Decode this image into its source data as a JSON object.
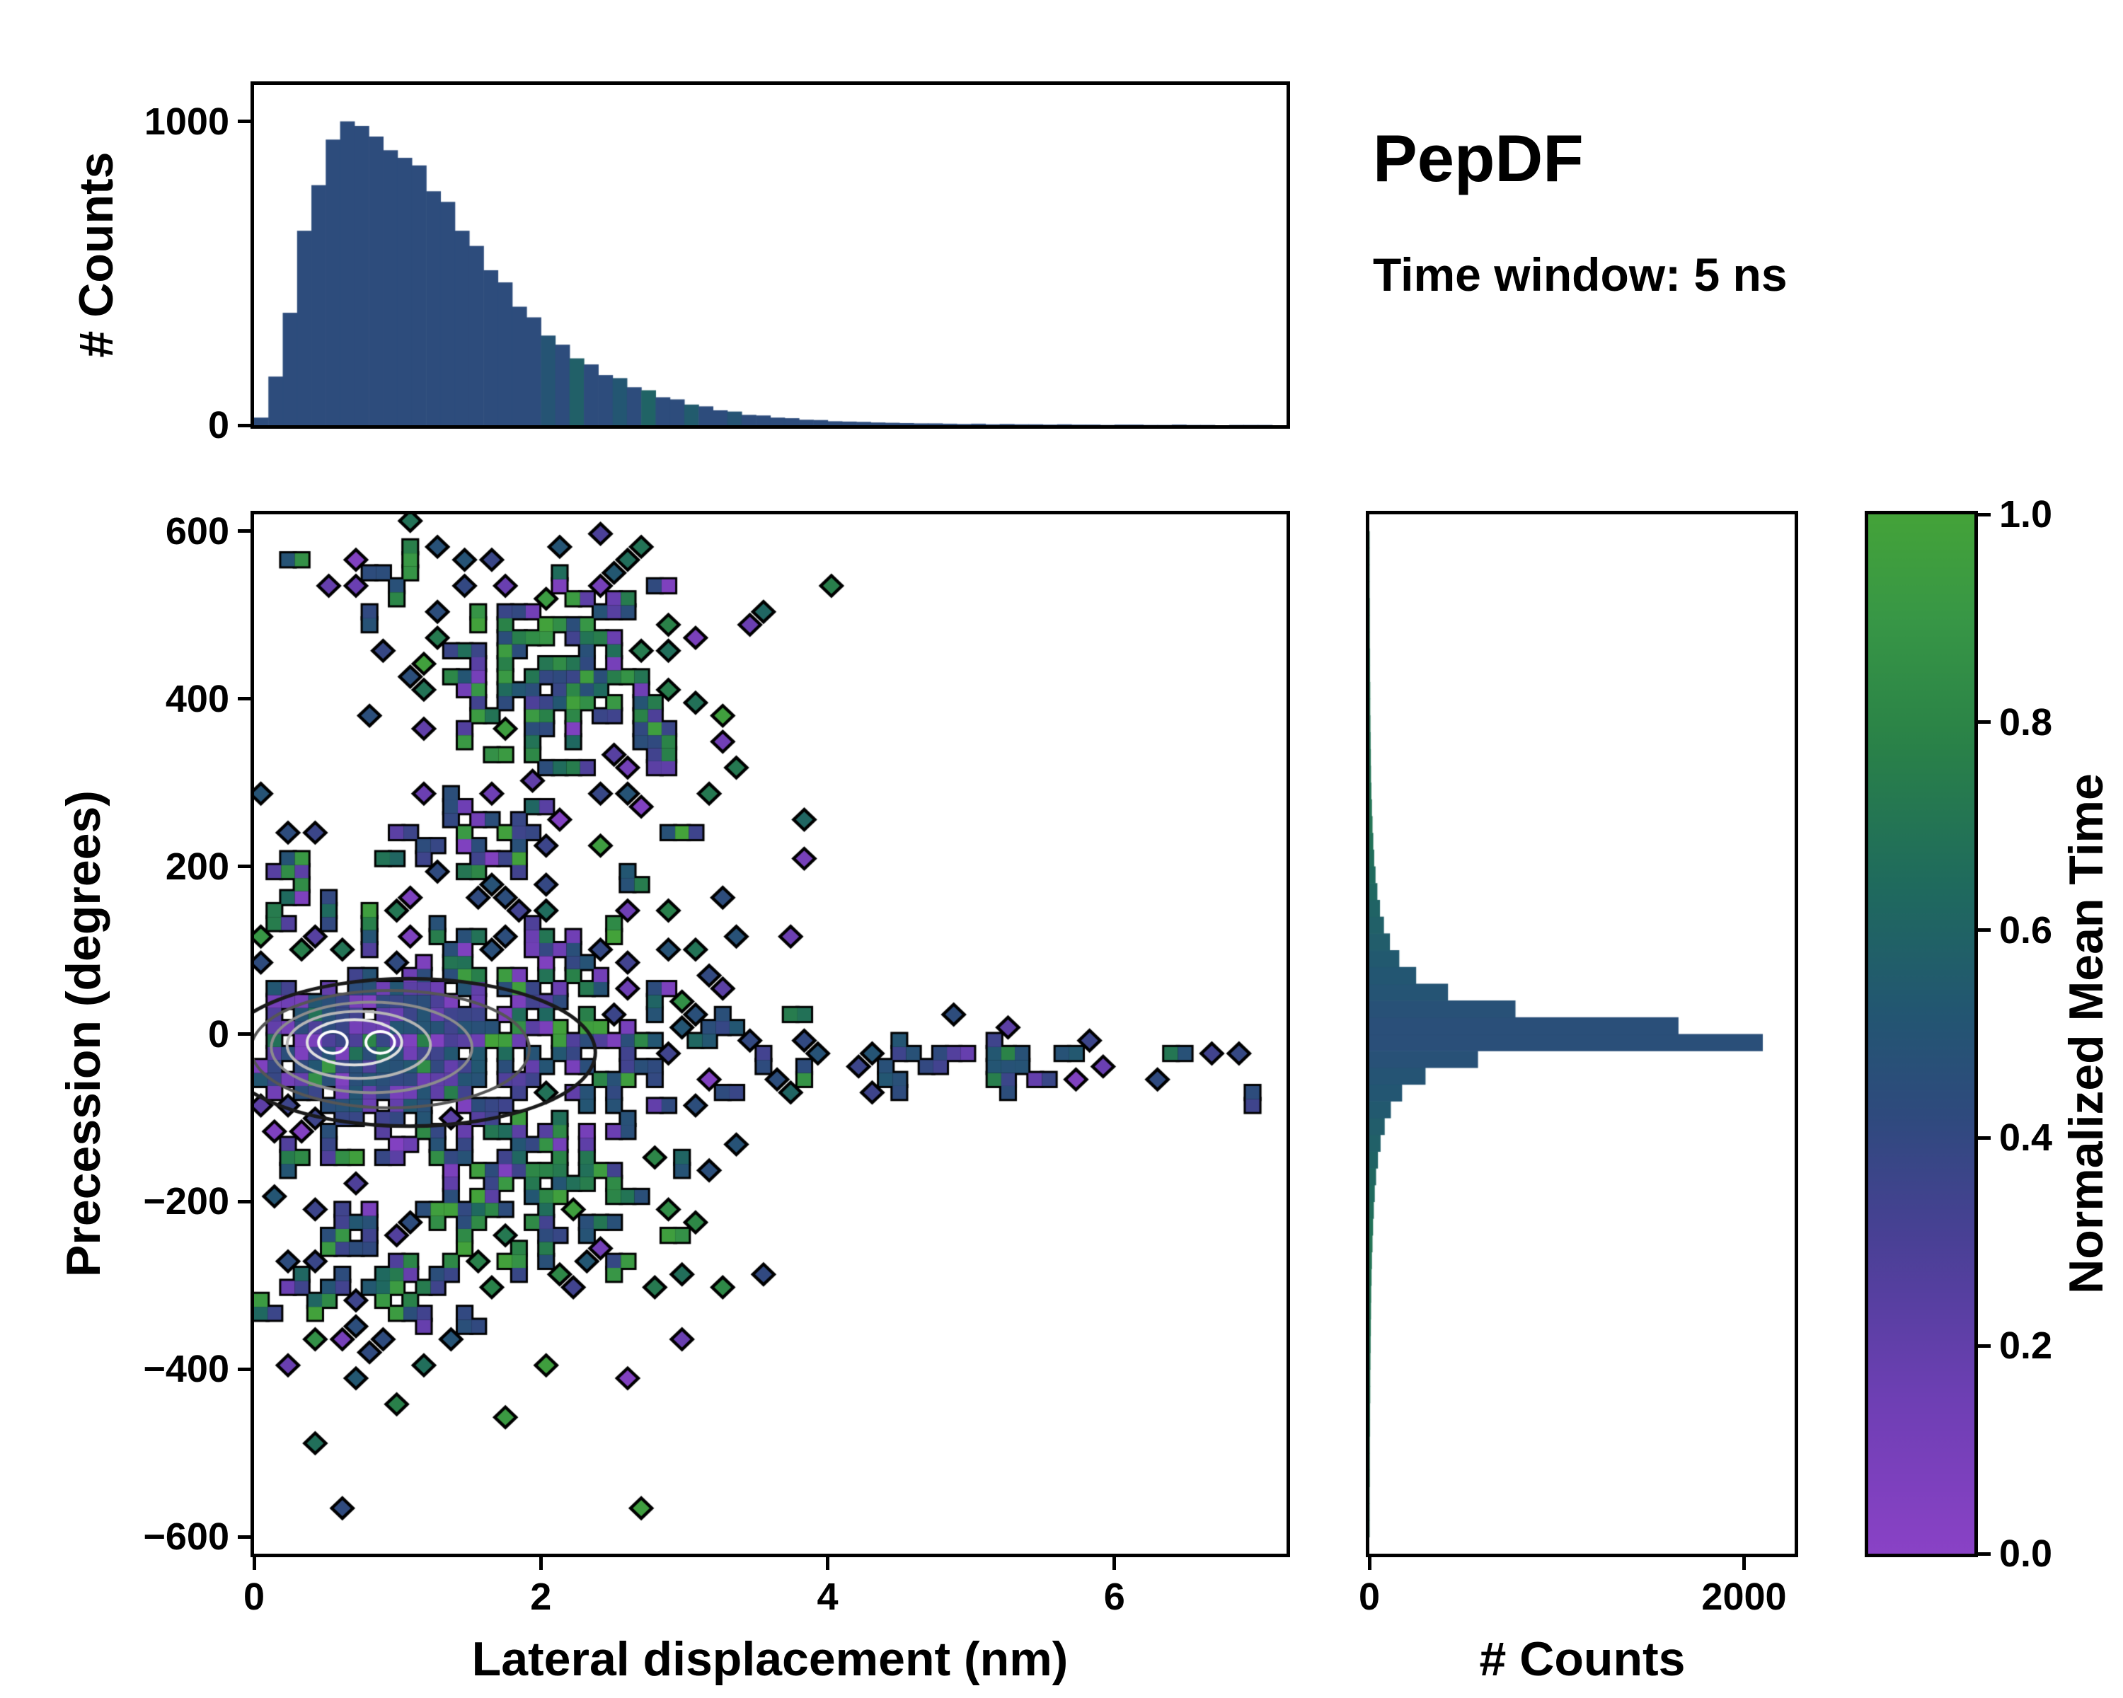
{
  "title": "PepDF",
  "subtitle": "Time window: 5 ns",
  "colormap": {
    "label": "Normalized Mean Time",
    "ticks": [
      {
        "v": 1.0,
        "label": "1.0"
      },
      {
        "v": 0.8,
        "label": "0.8"
      },
      {
        "v": 0.6,
        "label": "0.6"
      },
      {
        "v": 0.4,
        "label": "0.4"
      },
      {
        "v": 0.2,
        "label": "0.2"
      },
      {
        "v": 0.0,
        "label": "0.0"
      }
    ],
    "stops": [
      {
        "t": 0.0,
        "color": "#8a42c6"
      },
      {
        "t": 0.15,
        "color": "#6e3fb4"
      },
      {
        "t": 0.3,
        "color": "#4a4096"
      },
      {
        "t": 0.42,
        "color": "#2f4a7e"
      },
      {
        "t": 0.52,
        "color": "#235672"
      },
      {
        "t": 0.64,
        "color": "#1f6a5e"
      },
      {
        "t": 0.78,
        "color": "#2a8248"
      },
      {
        "t": 0.9,
        "color": "#389746"
      },
      {
        "t": 1.0,
        "color": "#44a339"
      }
    ]
  },
  "chart_data": [
    {
      "type": "bar",
      "panel": "top-marginal",
      "title": "",
      "xlabel": "",
      "ylabel": "# Counts",
      "xlim": [
        0,
        7.2
      ],
      "ylim": [
        0,
        1120
      ],
      "yticks": [
        {
          "v": 0,
          "label": "0"
        },
        {
          "v": 1000,
          "label": "1000"
        }
      ],
      "x_start": 0,
      "bin_width": 0.1,
      "values": [
        25,
        160,
        370,
        640,
        790,
        940,
        1000,
        985,
        950,
        905,
        880,
        855,
        770,
        735,
        640,
        590,
        510,
        470,
        390,
        355,
        295,
        265,
        220,
        200,
        165,
        155,
        125,
        115,
        92,
        85,
        68,
        62,
        49,
        45,
        34,
        32,
        25,
        23,
        18,
        17,
        13,
        12,
        11,
        9,
        8,
        7,
        6,
        6,
        5,
        4,
        5,
        3,
        4,
        3,
        3,
        2,
        3,
        2,
        2,
        1,
        2,
        2,
        1,
        1,
        2,
        1,
        1,
        0,
        1,
        1,
        1
      ],
      "color_values": [
        0.44,
        0.44,
        0.44,
        0.44,
        0.44,
        0.44,
        0.44,
        0.44,
        0.44,
        0.44,
        0.44,
        0.44,
        0.44,
        0.44,
        0.44,
        0.44,
        0.44,
        0.44,
        0.44,
        0.44,
        0.5,
        0.44,
        0.58,
        0.44,
        0.44,
        0.52,
        0.44,
        0.6,
        0.44,
        0.44,
        0.55,
        0.44,
        0.44,
        0.5,
        0.44,
        0.44,
        0.44,
        0.44,
        0.44,
        0.44,
        0.44,
        0.44,
        0.44,
        0.44,
        0.44,
        0.44,
        0.44,
        0.44,
        0.44,
        0.44,
        0.44,
        0.44,
        0.44,
        0.44,
        0.44,
        0.44,
        0.44,
        0.44,
        0.44,
        0.44,
        0.44,
        0.44,
        0.44,
        0.44,
        0.44,
        0.44,
        0.44,
        0.44,
        0.44,
        0.44,
        0.44
      ]
    },
    {
      "type": "heatmap",
      "panel": "joint",
      "title": "",
      "xlabel": "Lateral displacement (nm)",
      "ylabel": "Precession (degrees)",
      "xlim": [
        0,
        7.2
      ],
      "ylim": [
        -620,
        620
      ],
      "xticks": [
        {
          "v": 0,
          "label": "0"
        },
        {
          "v": 2,
          "label": "2"
        },
        {
          "v": 4,
          "label": "4"
        },
        {
          "v": 6,
          "label": "6"
        }
      ],
      "yticks": [
        {
          "v": 600,
          "label": "600"
        },
        {
          "v": 400,
          "label": "400"
        },
        {
          "v": 200,
          "label": "200"
        },
        {
          "v": 0,
          "label": "0"
        },
        {
          "v": -200,
          "label": "−200"
        },
        {
          "v": -400,
          "label": "−400"
        },
        {
          "v": -600,
          "label": "−600"
        }
      ],
      "grid": {
        "nx": 76,
        "ny": 80
      },
      "seed": 7,
      "outlier_rate": 0.007,
      "clusters": [
        {
          "amp": 1.0,
          "cx": 0.9,
          "cy": -15,
          "sx": 0.75,
          "sy": 70,
          "bias": "blue-purple"
        },
        {
          "amp": 0.55,
          "cx": 1.4,
          "cy": -10,
          "sx": 1.1,
          "sy": 130,
          "bias": "mixed"
        },
        {
          "amp": 0.32,
          "cx": 3.0,
          "cy": -30,
          "sx": 0.8,
          "sy": 45,
          "bias": "blue"
        },
        {
          "amp": 0.3,
          "cx": 5.0,
          "cy": -40,
          "sx": 1.15,
          "sy": 26,
          "bias": "blue"
        },
        {
          "amp": 0.5,
          "cx": 2.1,
          "cy": 420,
          "sx": 0.55,
          "sy": 95,
          "bias": "green-mixed"
        },
        {
          "amp": 0.4,
          "cx": 1.7,
          "cy": 245,
          "sx": 0.45,
          "sy": 70,
          "bias": "mixed"
        },
        {
          "amp": 0.35,
          "cx": 1.1,
          "cy": 545,
          "sx": 0.35,
          "sy": 45,
          "bias": "blue-mixed"
        },
        {
          "amp": 0.35,
          "cx": 2.6,
          "cy": 335,
          "sx": 0.45,
          "sy": 60,
          "bias": "green-mixed"
        },
        {
          "amp": 0.55,
          "cx": 1.9,
          "cy": -200,
          "sx": 0.75,
          "sy": 60,
          "bias": "green-mixed"
        },
        {
          "amp": 0.4,
          "cx": 0.8,
          "cy": -290,
          "sx": 0.45,
          "sy": 70,
          "bias": "blue-mixed"
        },
        {
          "amp": 0.3,
          "cx": 0.35,
          "cy": 175,
          "sx": 0.25,
          "sy": 40,
          "bias": "blue-mixed"
        }
      ],
      "contours": [
        {
          "cx": 0.55,
          "cy": -10,
          "rx": 0.1,
          "ry": 13,
          "color": "#ffffff",
          "lw": 4
        },
        {
          "cx": 0.88,
          "cy": -10,
          "rx": 0.1,
          "ry": 13,
          "color": "#ffffff",
          "lw": 4
        },
        {
          "cx": 0.7,
          "cy": -10,
          "rx": 0.33,
          "ry": 27,
          "color": "#e0e0e0",
          "lw": 4
        },
        {
          "cx": 0.73,
          "cy": -13,
          "rx": 0.5,
          "ry": 40,
          "color": "#b5b5b5",
          "lw": 4
        },
        {
          "cx": 0.82,
          "cy": -16,
          "rx": 0.7,
          "ry": 54,
          "color": "#8c8c8c",
          "lw": 4
        },
        {
          "cx": 0.95,
          "cy": -18,
          "rx": 0.97,
          "ry": 70,
          "color": "#565656",
          "lw": 4
        },
        {
          "cx": 1.08,
          "cy": -22,
          "rx": 1.3,
          "ry": 88,
          "color": "#1a1a1a",
          "lw": 5
        }
      ]
    },
    {
      "type": "bar",
      "panel": "right-marginal",
      "orientation": "horizontal",
      "title": "",
      "xlabel": "# Counts",
      "ylabel": "",
      "xlim": [
        0,
        2270
      ],
      "ylim": [
        -620,
        620
      ],
      "xticks": [
        {
          "v": 0,
          "label": "0"
        },
        {
          "v": 2000,
          "label": "2000"
        }
      ],
      "y_start": -600,
      "bin_width": 20,
      "values": [
        2,
        2,
        2,
        3,
        3,
        3,
        4,
        4,
        5,
        5,
        6,
        7,
        8,
        9,
        10,
        12,
        14,
        17,
        20,
        24,
        29,
        36,
        46,
        60,
        82,
        115,
        175,
        300,
        580,
        2100,
        1650,
        780,
        420,
        250,
        160,
        110,
        78,
        57,
        43,
        33,
        26,
        21,
        17,
        14,
        11,
        9,
        8,
        7,
        6,
        5,
        5,
        4,
        4,
        3,
        3,
        3,
        2,
        2,
        2,
        2
      ],
      "color_values": [
        0.7,
        0.7,
        0.7,
        0.7,
        0.7,
        0.7,
        0.7,
        0.7,
        0.7,
        0.7,
        0.7,
        0.7,
        0.7,
        0.7,
        0.7,
        0.7,
        0.7,
        0.7,
        0.68,
        0.66,
        0.64,
        0.62,
        0.6,
        0.58,
        0.56,
        0.54,
        0.52,
        0.5,
        0.48,
        0.46,
        0.46,
        0.48,
        0.5,
        0.52,
        0.54,
        0.56,
        0.58,
        0.6,
        0.62,
        0.64,
        0.66,
        0.68,
        0.7,
        0.7,
        0.7,
        0.7,
        0.7,
        0.7,
        0.7,
        0.7,
        0.7,
        0.7,
        0.7,
        0.7,
        0.7,
        0.7,
        0.7,
        0.7,
        0.7,
        0.7
      ]
    }
  ]
}
